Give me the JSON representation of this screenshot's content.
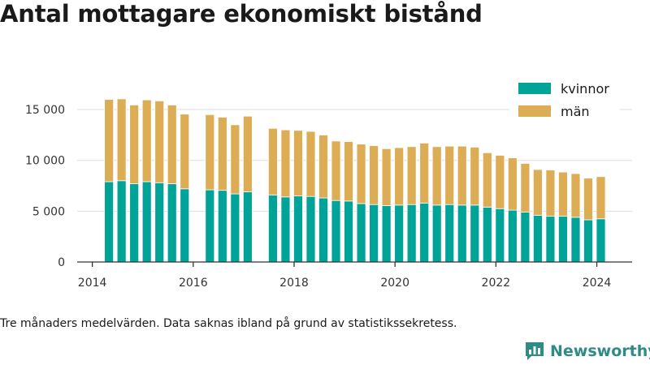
{
  "title": "Antal mottagare ekonomiskt bistånd",
  "footnote": "Tre månaders medelvärden. Data saknas ibland på grund av statistikssekretess.",
  "brand": "Newsworthy",
  "colors": {
    "kvinnor": "#00a398",
    "man": "#dcad55",
    "grid": "#dddddd",
    "axis": "#333333",
    "brand": "#2f8c84"
  },
  "chart_data": {
    "type": "bar",
    "stacked": true,
    "x_unit": "year (quarter midpoints)",
    "xlim": [
      2013.7,
      2024.7
    ],
    "ylim": [
      0,
      17000
    ],
    "x_ticks": [
      {
        "value": 2014,
        "label": "2014"
      },
      {
        "value": 2016,
        "label": "2016"
      },
      {
        "value": 2018,
        "label": "2018"
      },
      {
        "value": 2020,
        "label": "2020"
      },
      {
        "value": 2022,
        "label": "2022"
      },
      {
        "value": 2024,
        "label": "2024"
      }
    ],
    "y_ticks": [
      {
        "value": 0,
        "label": "0"
      },
      {
        "value": 5000,
        "label": "5 000"
      },
      {
        "value": 10000,
        "label": "10 000"
      },
      {
        "value": 15000,
        "label": "15 000"
      }
    ],
    "grid": true,
    "legend_position": "top-right",
    "x": [
      2014.33,
      2014.58,
      2014.83,
      2015.08,
      2015.33,
      2015.58,
      2015.83,
      2016.33,
      2016.58,
      2016.83,
      2017.08,
      2017.58,
      2017.83,
      2018.08,
      2018.33,
      2018.58,
      2018.83,
      2019.08,
      2019.33,
      2019.58,
      2019.83,
      2020.08,
      2020.33,
      2020.58,
      2020.83,
      2021.08,
      2021.33,
      2021.58,
      2021.83,
      2022.08,
      2022.33,
      2022.58,
      2022.83,
      2023.08,
      2023.33,
      2023.58,
      2023.83,
      2024.08
    ],
    "series": [
      {
        "name": "kvinnor",
        "color_key": "kvinnor",
        "values": [
          7900,
          8000,
          7700,
          7900,
          7800,
          7700,
          7200,
          7100,
          7050,
          6700,
          6900,
          6600,
          6400,
          6500,
          6450,
          6300,
          6050,
          6000,
          5750,
          5650,
          5550,
          5600,
          5650,
          5800,
          5600,
          5650,
          5600,
          5600,
          5400,
          5250,
          5100,
          4900,
          4600,
          4500,
          4500,
          4400,
          4150,
          4250
        ]
      },
      {
        "name": "män",
        "color_key": "man",
        "values": [
          8100,
          8050,
          7750,
          8050,
          8050,
          7750,
          7350,
          7400,
          7200,
          6800,
          7450,
          6550,
          6600,
          6450,
          6400,
          6200,
          5850,
          5850,
          5850,
          5800,
          5600,
          5650,
          5700,
          5900,
          5750,
          5750,
          5800,
          5700,
          5350,
          5250,
          5150,
          4800,
          4500,
          4550,
          4350,
          4300,
          4100,
          4150
        ]
      }
    ]
  }
}
